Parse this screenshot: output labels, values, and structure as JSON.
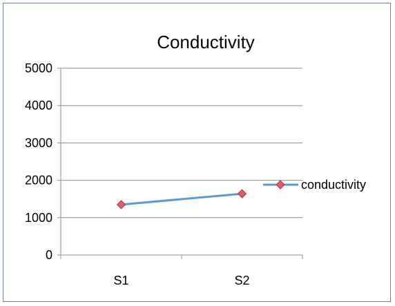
{
  "chart_data": {
    "type": "line",
    "title": "Conductivity",
    "xlabel": "",
    "ylabel": "",
    "categories": [
      "S1",
      "S2"
    ],
    "ylim": [
      0,
      5000
    ],
    "yticks": [
      0,
      1000,
      2000,
      3000,
      4000,
      5000
    ],
    "grid": true,
    "legend_position": "right",
    "series": [
      {
        "name": "conductivity",
        "values": [
          1350,
          1640
        ],
        "line_color": "#5b9bd5",
        "marker": "diamond",
        "marker_fill": "#e05a6f",
        "marker_edge": "#c0392b"
      }
    ]
  },
  "colors": {
    "gridline": "#8c8c8c",
    "axis": "#8c8c8c",
    "border": "#6b7f9e"
  }
}
